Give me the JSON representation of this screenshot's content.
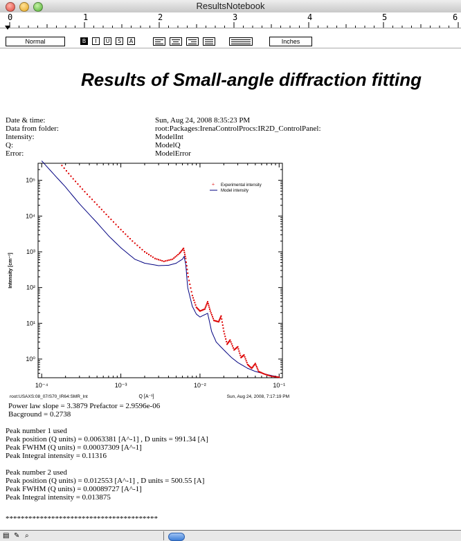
{
  "window": {
    "title": "ResultsNotebook"
  },
  "ruler": {
    "numbers": [
      "0",
      "1",
      "2",
      "3",
      "4",
      "5",
      "6"
    ]
  },
  "toolbar": {
    "style_value": "Normal",
    "units_value": "Inches",
    "format_buttons": [
      "B",
      "I",
      "U",
      "S",
      "A",
      "T"
    ]
  },
  "document": {
    "title": "Results of Small-angle diffraction fitting",
    "info": [
      {
        "label": "Date & time:",
        "value": "Sun, Aug 24, 2008   8:35:23 PM"
      },
      {
        "label": "Data from folder:",
        "value": "root:Packages:IrenaControlProcs:IR2D_ControlPanel:"
      },
      {
        "label": "Intensity:",
        "value": "ModelInt"
      },
      {
        "label": "Q:",
        "value": "ModelQ"
      },
      {
        "label": "Error:",
        "value": "ModelError"
      }
    ],
    "results": {
      "power_law": "Power law slope = 3.3879    Prefactor = 2.9596e-06",
      "background": "Bacground = 0.2738",
      "peak1_title": "Peak number 1 used",
      "peak1_position": "Peak position (Q units) = 0.0063381  [A^-1]    , D units = 991.34 [A]",
      "peak1_fwhm": "Peak FWHM (Q units) = 0.00037309 [A^-1]",
      "peak1_integral": "Peak Integral intensity = 0.11316",
      "peak2_title": "Peak number 2 used",
      "peak2_position": "Peak position (Q units) = 0.012553  [A^-1]    , D units = 500.55 [A]",
      "peak2_fwhm": "Peak FWHM (Q units) = 0.00089727 [A^-1]",
      "peak2_integral": "Peak Integral intensity = 0.013875",
      "separator": "****************************************"
    }
  },
  "chart_data": {
    "type": "scatter",
    "xscale": "log",
    "yscale": "log",
    "xlim": [
      9e-05,
      0.11
    ],
    "ylim": [
      0.3,
      300000
    ],
    "xlabel": "Q [A⁻¹]",
    "ylabel": "Intensity [cm⁻¹]",
    "x_ticks": [
      {
        "value": 0.0001,
        "label": "10⁻⁴"
      },
      {
        "value": 0.001,
        "label": "10⁻³"
      },
      {
        "value": 0.01,
        "label": "10⁻²"
      },
      {
        "value": 0.1,
        "label": "10⁻¹"
      }
    ],
    "y_ticks": [
      {
        "value": 1,
        "label": "10⁰"
      },
      {
        "value": 10,
        "label": "10¹"
      },
      {
        "value": 100,
        "label": "10²"
      },
      {
        "value": 1000,
        "label": "10³"
      },
      {
        "value": 10000,
        "label": "10⁴"
      },
      {
        "value": 100000,
        "label": "10⁵"
      }
    ],
    "footnote_left": "root:USAXS:08_07/S70_IR64:SMR_Int",
    "footnote_right": "Sun, Aug 24, 2008, 7:17:19 PM",
    "legend_position": "top-right",
    "series": [
      {
        "name": "Experimental intensity",
        "style": "markers",
        "color": "#dd0000",
        "points": [
          [
            0.00018,
            260000
          ],
          [
            0.00025,
            110000
          ],
          [
            0.00035,
            48000
          ],
          [
            0.0005,
            21000
          ],
          [
            0.0007,
            9500
          ],
          [
            0.001,
            4200
          ],
          [
            0.0014,
            2000
          ],
          [
            0.002,
            1000
          ],
          [
            0.0027,
            650
          ],
          [
            0.0035,
            540
          ],
          [
            0.0045,
            620
          ],
          [
            0.0055,
            900
          ],
          [
            0.0062,
            1250
          ],
          [
            0.0066,
            650
          ],
          [
            0.0071,
            200
          ],
          [
            0.008,
            60
          ],
          [
            0.009,
            28
          ],
          [
            0.01,
            22
          ],
          [
            0.0115,
            25
          ],
          [
            0.0125,
            40
          ],
          [
            0.0135,
            22
          ],
          [
            0.015,
            12
          ],
          [
            0.0172,
            11
          ],
          [
            0.0185,
            16
          ],
          [
            0.02,
            6
          ],
          [
            0.022,
            2.6
          ],
          [
            0.024,
            3.4
          ],
          [
            0.027,
            1.8
          ],
          [
            0.03,
            2.2
          ],
          [
            0.033,
            1.1
          ],
          [
            0.036,
            1.3
          ],
          [
            0.04,
            0.7
          ],
          [
            0.045,
            0.55
          ],
          [
            0.05,
            0.75
          ],
          [
            0.055,
            0.45
          ],
          [
            0.065,
            0.38
          ],
          [
            0.08,
            0.33
          ],
          [
            0.1,
            0.31
          ]
        ]
      },
      {
        "name": "Model intensity",
        "style": "line",
        "color": "#000080",
        "points": [
          [
            0.0001,
            350000
          ],
          [
            0.00015,
            130000
          ],
          [
            0.0002,
            65000
          ],
          [
            0.0003,
            22000
          ],
          [
            0.0005,
            6500
          ],
          [
            0.0007,
            2800
          ],
          [
            0.001,
            1300
          ],
          [
            0.0015,
            620
          ],
          [
            0.002,
            480
          ],
          [
            0.003,
            410
          ],
          [
            0.004,
            420
          ],
          [
            0.005,
            480
          ],
          [
            0.006,
            620
          ],
          [
            0.0063,
            740
          ],
          [
            0.0066,
            450
          ],
          [
            0.007,
            100
          ],
          [
            0.008,
            30
          ],
          [
            0.009,
            18
          ],
          [
            0.01,
            15
          ],
          [
            0.0112,
            17
          ],
          [
            0.0125,
            19
          ],
          [
            0.014,
            6
          ],
          [
            0.016,
            3
          ],
          [
            0.02,
            1.8
          ],
          [
            0.025,
            1.1
          ],
          [
            0.03,
            0.8
          ],
          [
            0.04,
            0.55
          ],
          [
            0.05,
            0.45
          ],
          [
            0.07,
            0.37
          ],
          [
            0.1,
            0.31
          ]
        ]
      }
    ]
  }
}
